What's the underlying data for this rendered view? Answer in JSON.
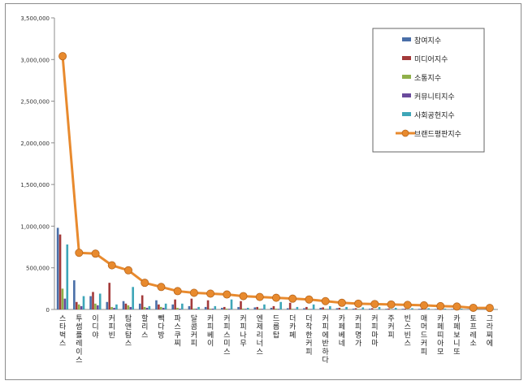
{
  "chart_data": {
    "type": "bar",
    "ylim": [
      0,
      3500000
    ],
    "y_ticks": [
      "0",
      "500,000",
      "1,000,000",
      "1,500,000",
      "2,000,000",
      "2,500,000",
      "3,000,000",
      "3,500,000"
    ],
    "grid": false,
    "legend_position": "top-right",
    "categories": [
      "스타벅스",
      "투썸플레이스",
      "이디야",
      "커피빈",
      "탐앤탐스",
      "할리스",
      "빽다방",
      "파스쿠찌",
      "달콤커피",
      "커피베이",
      "커피스미스",
      "커피나무",
      "엔제리너스",
      "드롭탑",
      "더카페",
      "더착한커피",
      "커피에반하다",
      "카페베네",
      "커피명가",
      "커피마마",
      "주커피",
      "빈스빈스",
      "매머드커피",
      "카페띠아모",
      "카페보니또",
      "토프레소",
      "그라찌에"
    ],
    "series": [
      {
        "name": "참여지수",
        "type": "bar",
        "color": "#4a6fa8",
        "values": [
          980000,
          350000,
          160000,
          90000,
          100000,
          70000,
          110000,
          60000,
          40000,
          30000,
          20000,
          30000,
          25000,
          20000,
          15000,
          15000,
          20000,
          15000,
          10000,
          10000,
          8000,
          8000,
          8000,
          6000,
          6000,
          5000,
          4000
        ]
      },
      {
        "name": "미디어지수",
        "type": "bar",
        "color": "#a33a3a",
        "values": [
          900000,
          90000,
          210000,
          320000,
          70000,
          170000,
          60000,
          120000,
          130000,
          110000,
          30000,
          100000,
          30000,
          40000,
          80000,
          30000,
          25000,
          20000,
          15000,
          15000,
          12000,
          10000,
          10000,
          8000,
          8000,
          6000,
          5000
        ]
      },
      {
        "name": "소통지수",
        "type": "bar",
        "color": "#8fb04a",
        "values": [
          250000,
          60000,
          70000,
          30000,
          50000,
          30000,
          30000,
          20000,
          10000,
          10000,
          10000,
          10000,
          10000,
          10000,
          8000,
          8000,
          8000,
          6000,
          6000,
          5000,
          5000,
          4000,
          4000,
          4000,
          3000,
          3000,
          2000
        ]
      },
      {
        "name": "커뮤니티지수",
        "type": "bar",
        "color": "#6a4a9c",
        "values": [
          130000,
          40000,
          50000,
          20000,
          30000,
          20000,
          20000,
          10000,
          10000,
          10000,
          8000,
          8000,
          8000,
          8000,
          6000,
          6000,
          6000,
          5000,
          5000,
          4000,
          4000,
          3000,
          3000,
          3000,
          2000,
          2000,
          2000
        ]
      },
      {
        "name": "사회공헌지수",
        "type": "bar",
        "color": "#3ea6b8",
        "values": [
          780000,
          160000,
          190000,
          60000,
          270000,
          40000,
          70000,
          70000,
          30000,
          40000,
          120000,
          20000,
          60000,
          90000,
          30000,
          60000,
          40000,
          30000,
          25000,
          30000,
          20000,
          15000,
          15000,
          10000,
          10000,
          8000,
          6000
        ]
      },
      {
        "name": "브랜드평판지수",
        "type": "line",
        "color": "#e88a2e",
        "values": [
          3040000,
          680000,
          670000,
          530000,
          470000,
          320000,
          270000,
          220000,
          200000,
          190000,
          180000,
          160000,
          150000,
          140000,
          130000,
          120000,
          100000,
          80000,
          70000,
          65000,
          60000,
          55000,
          50000,
          40000,
          35000,
          20000,
          18000
        ]
      }
    ]
  }
}
